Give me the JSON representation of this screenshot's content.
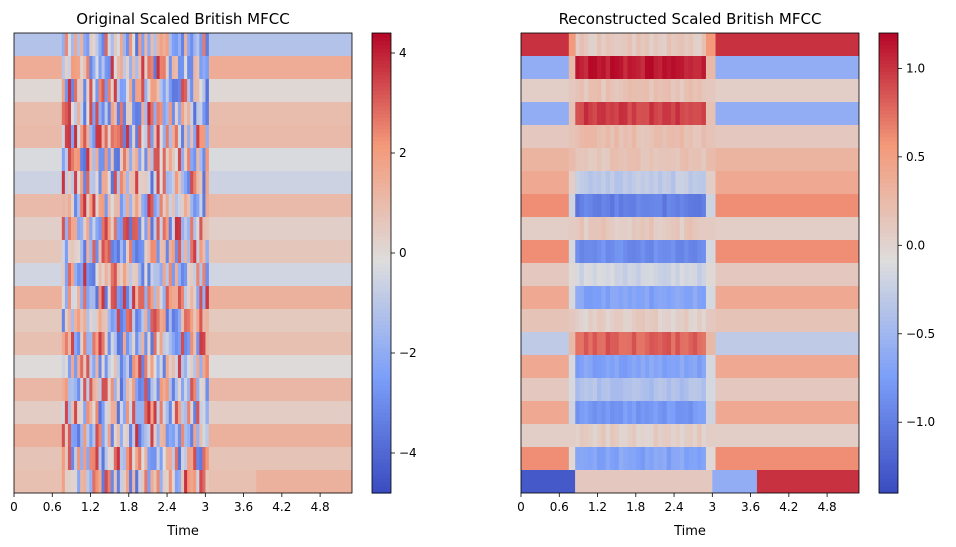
{
  "chart_data": [
    {
      "type": "heatmap",
      "title": "Original Scaled British MFCC",
      "xlabel": "Time",
      "ylabel": "",
      "x_ticks": [
        "0",
        "0.6",
        "1.2",
        "1.8",
        "2.4",
        "3",
        "3.6",
        "4.2",
        "4.8"
      ],
      "x_tick_values": [
        0,
        0.6,
        1.2,
        1.8,
        2.4,
        3.0,
        3.6,
        4.2,
        4.8
      ],
      "xlim": [
        0,
        5.3
      ],
      "n_coefficients": 20,
      "speech_interval": [
        0.75,
        3.05
      ],
      "colorbar": {
        "ticks": [
          4,
          2,
          0,
          -2,
          -4
        ],
        "tick_labels": [
          "4",
          "2",
          "0",
          "−2",
          "−4"
        ],
        "range": [
          -4.8,
          4.4
        ]
      },
      "colormap": "coolwarm",
      "row_values": [
        -1.2,
        1.5,
        0.0,
        0.9,
        1.0,
        -0.3,
        -0.6,
        1.0,
        0.3,
        0.6,
        -0.5,
        1.3,
        0.5,
        0.8,
        -0.1,
        1.1,
        0.4,
        1.3,
        0.7,
        0.8
      ],
      "trailing_bottom_row": {
        "from": 3.8,
        "value": 1.3
      },
      "grid": false
    },
    {
      "type": "heatmap",
      "title": "Reconstructed Scaled British MFCC",
      "xlabel": "Time",
      "ylabel": "",
      "x_ticks": [
        "0",
        "0.6",
        "1.2",
        "1.8",
        "2.4",
        "3",
        "3.6",
        "4.2",
        "4.8"
      ],
      "x_tick_values": [
        0,
        0.6,
        1.2,
        1.8,
        2.4,
        3.0,
        3.6,
        4.2,
        4.8
      ],
      "xlim": [
        0,
        5.3
      ],
      "n_coefficients": 20,
      "speech_interval": [
        0.85,
        2.9
      ],
      "colorbar": {
        "ticks": [
          1.0,
          0.5,
          0.0,
          -0.5,
          -1.0
        ],
        "tick_labels": [
          "1.0",
          "0.5",
          "0.0",
          "−0.5",
          "−1.0"
        ],
        "range": [
          -1.4,
          1.2
        ]
      },
      "colormap": "coolwarm",
      "row_values": [
        {
          "outside": -1.3,
          "inside": 0.1,
          "after": 1.0
        },
        {
          "outside": -0.6,
          "inside": 1.1,
          "after": -0.6
        },
        {
          "outside": 0.05,
          "inside": 0.15,
          "after": 0.05
        },
        {
          "outside": -0.6,
          "inside": 0.95,
          "after": -0.6
        },
        {
          "outside": 0.1,
          "inside": 0.2,
          "after": 0.1
        },
        {
          "outside": 0.3,
          "inside": 0.15,
          "after": 0.3
        },
        {
          "outside": 0.4,
          "inside": -0.3,
          "after": 0.4
        },
        {
          "outside": 0.6,
          "inside": -1.0,
          "after": 0.6
        },
        {
          "outside": 0.05,
          "inside": 0.1,
          "after": 0.05
        },
        {
          "outside": 0.6,
          "inside": -0.9,
          "after": 0.6
        },
        {
          "outside": 0.1,
          "inside": -0.2,
          "after": 0.1
        },
        {
          "outside": 0.4,
          "inside": -0.7,
          "after": 0.4
        },
        {
          "outside": 0.15,
          "inside": 0.05,
          "after": 0.15
        },
        {
          "outside": -0.3,
          "inside": 0.8,
          "after": -0.3
        },
        {
          "outside": 0.4,
          "inside": -0.7,
          "after": 0.4
        },
        {
          "outside": 0.1,
          "inside": -0.4,
          "after": 0.1
        },
        {
          "outside": 0.4,
          "inside": -0.8,
          "after": 0.4
        },
        {
          "outside": 0.05,
          "inside": 0.05,
          "after": 0.05
        },
        {
          "outside": 0.6,
          "inside": -0.7,
          "after": 0.6
        },
        {
          "outside": 0.05,
          "inside": 0.05,
          "after": 0.05
        }
      ],
      "grid": false
    }
  ]
}
